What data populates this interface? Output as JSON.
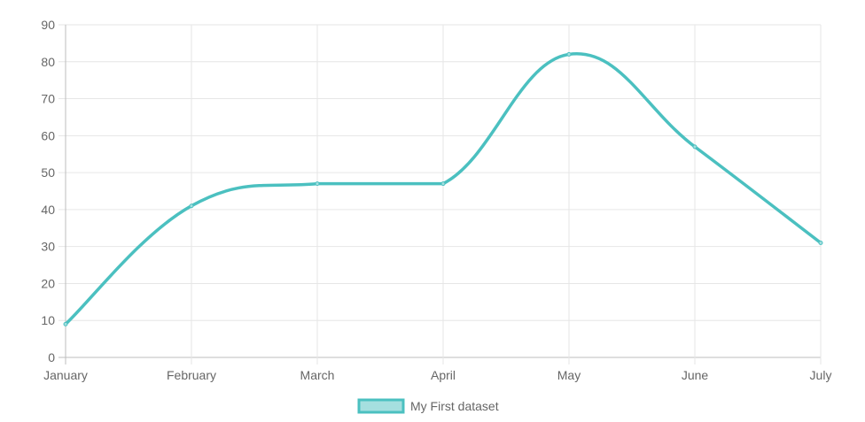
{
  "chart_data": {
    "type": "line",
    "categories": [
      "January",
      "February",
      "March",
      "April",
      "May",
      "June",
      "July"
    ],
    "yticks": [
      0,
      10,
      20,
      30,
      40,
      50,
      60,
      70,
      80,
      90
    ],
    "ylim": [
      0,
      90
    ],
    "grid": true,
    "legend_position": "bottom",
    "series": [
      {
        "name": "My First dataset",
        "values": [
          9,
          41,
          47,
          47,
          82,
          57,
          31
        ],
        "color": "#4bc0c0",
        "fill": "#a5dfdf"
      }
    ]
  }
}
